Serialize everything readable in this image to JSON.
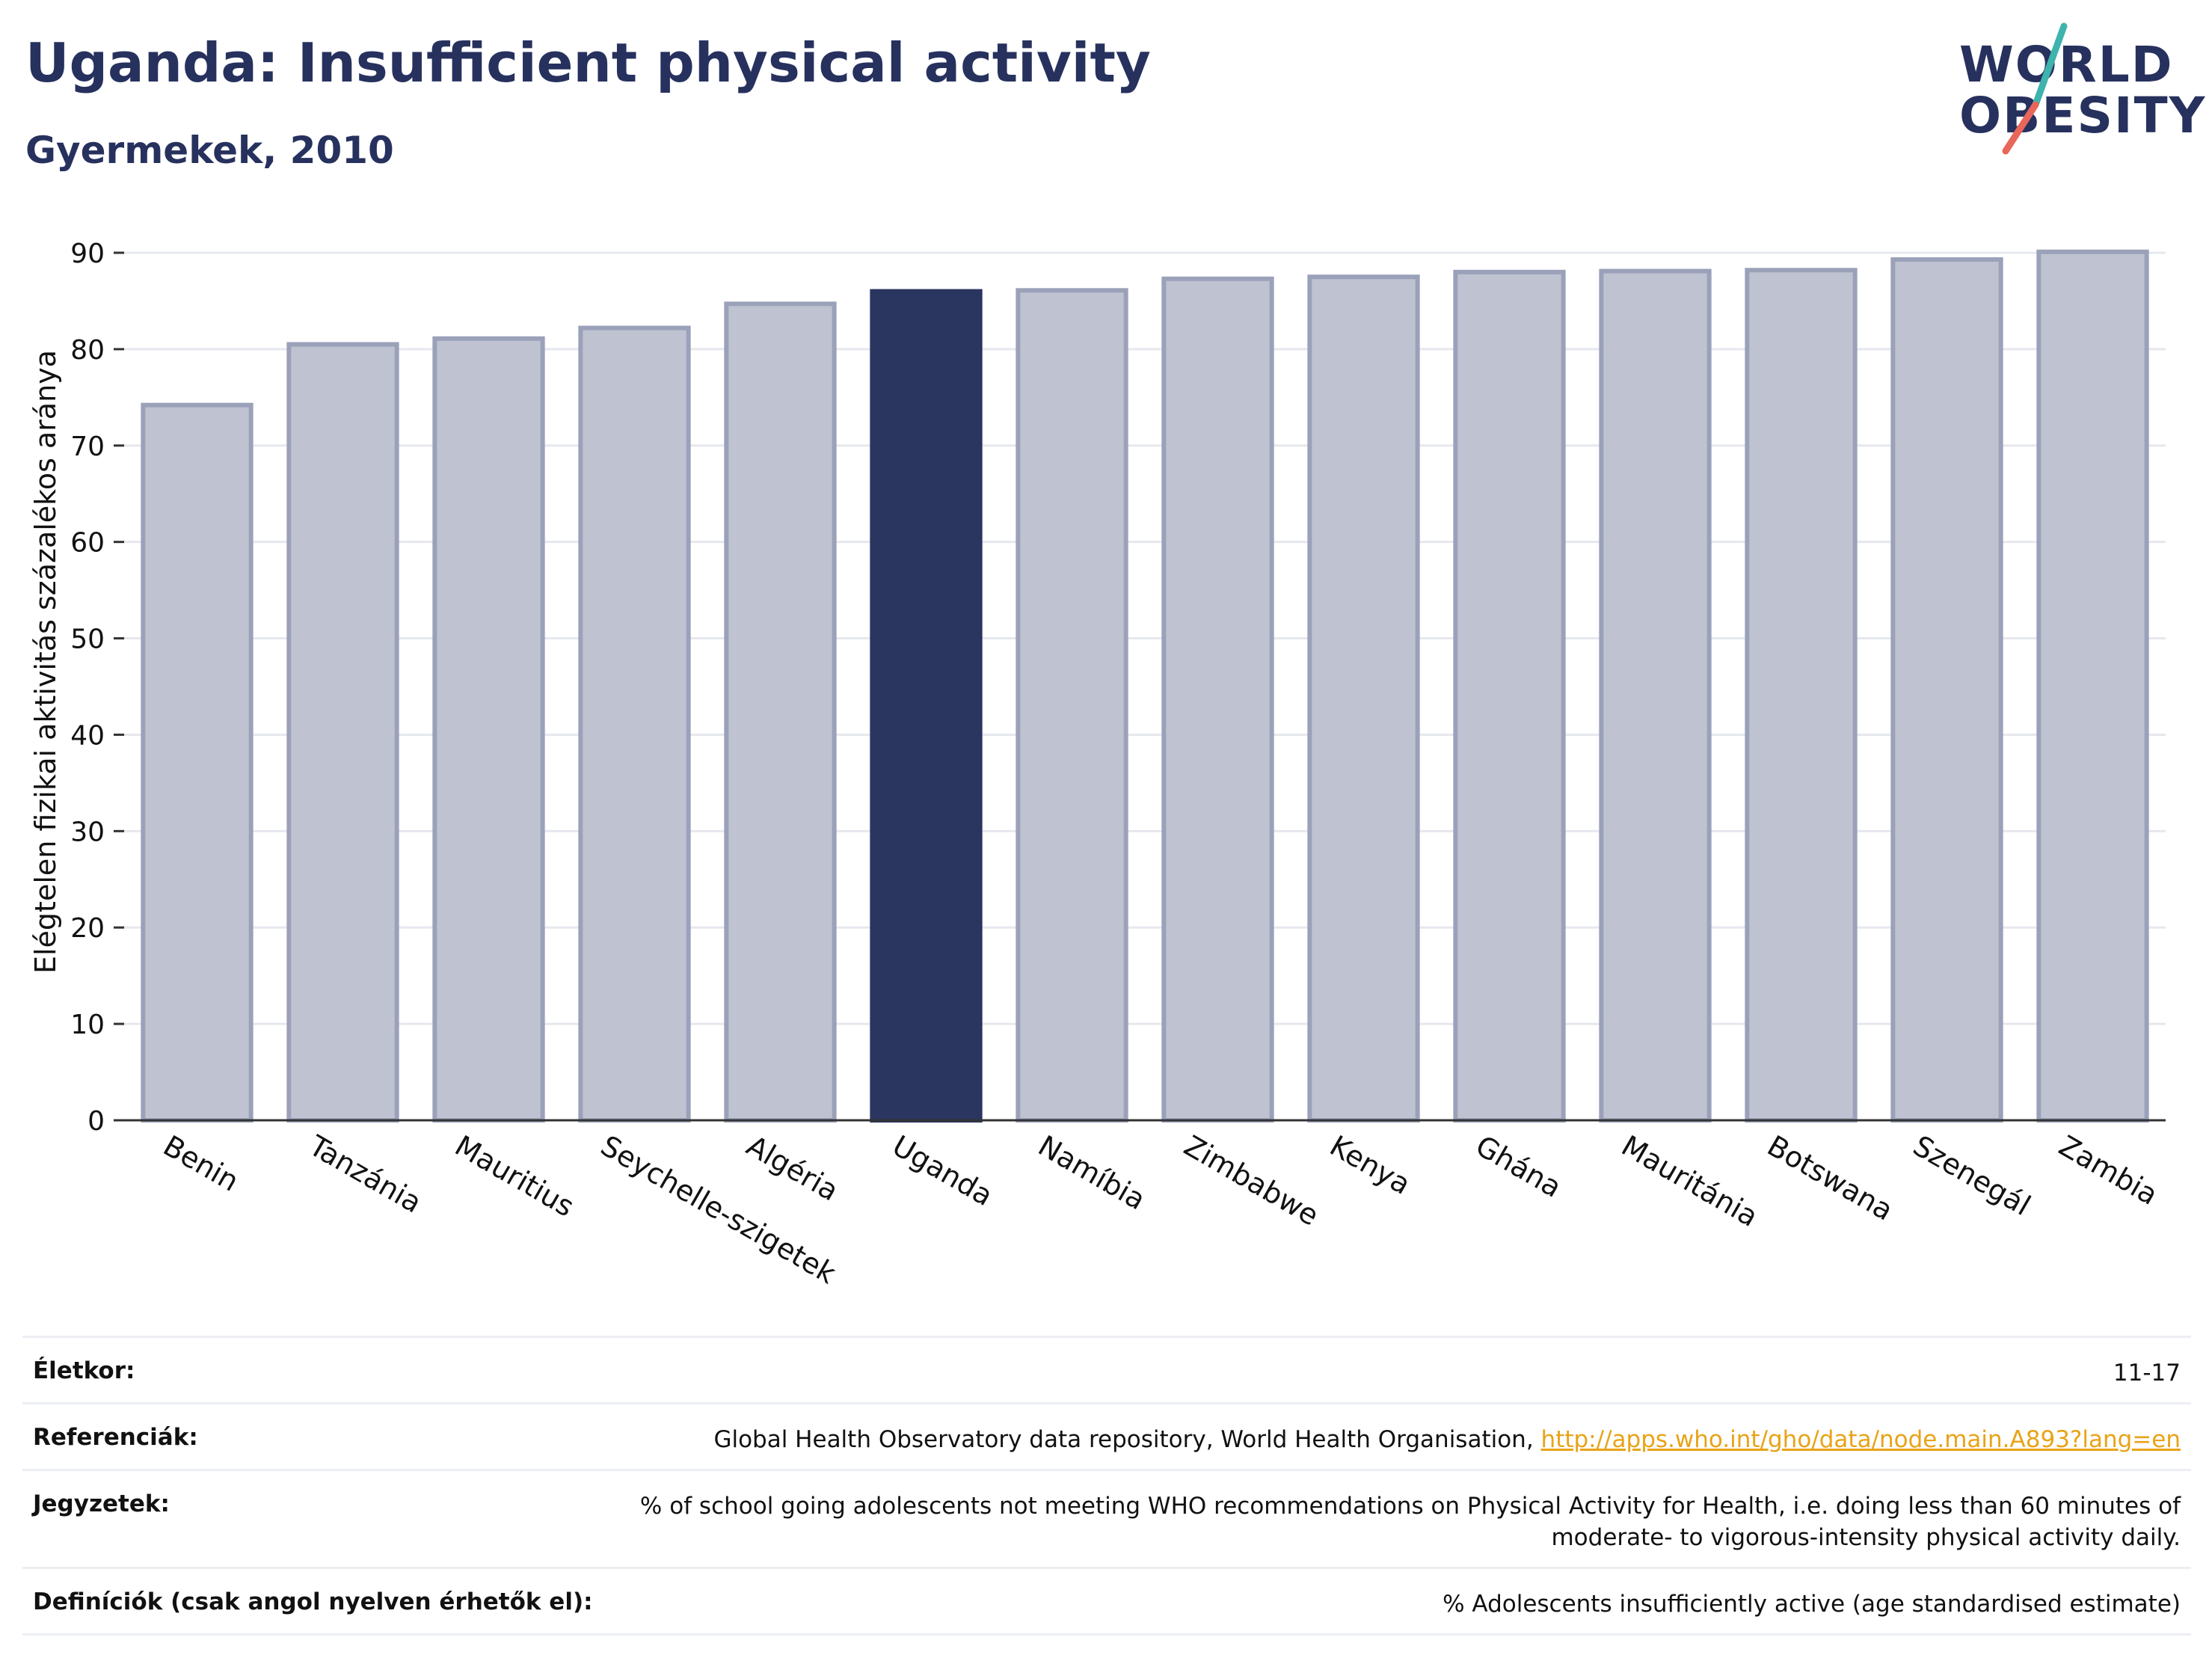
{
  "header": {
    "title": "Uganda: Insufficient physical activity",
    "subtitle": "Gyermekek, 2010"
  },
  "logo": {
    "line1": "WORLD",
    "line2": "OBESITY",
    "slash_colors": [
      "#3fb3ad",
      "#e8665a"
    ]
  },
  "colors": {
    "bar": "#bfc3d1",
    "bar_stroke": "#9aa1b9",
    "highlight": "#2a3560",
    "grid": "#e6e8ef",
    "axis": "#333333"
  },
  "chart_data": {
    "type": "bar",
    "title": "Uganda: Insufficient physical activity",
    "subtitle": "Gyermekek, 2010",
    "ylabel": "Elégtelen fizikai aktivitás százalékos aránya",
    "xlabel": "",
    "ylim": [
      0,
      90
    ],
    "yticks": [
      0,
      10,
      20,
      30,
      40,
      50,
      60,
      70,
      80,
      90
    ],
    "grid": true,
    "highlight": "Uganda",
    "categories": [
      "Benin",
      "Tanzánia",
      "Mauritius",
      "Seychelle-szigetek",
      "Algéria",
      "Uganda",
      "Namíbia",
      "Zimbabwe",
      "Kenya",
      "Ghána",
      "Mauritánia",
      "Botswana",
      "Szenegál",
      "Zambia"
    ],
    "values": [
      74.2,
      80.5,
      81.1,
      82.2,
      84.7,
      86.0,
      86.1,
      87.3,
      87.5,
      88.0,
      88.1,
      88.2,
      89.3,
      90.1
    ]
  },
  "footer": {
    "rows": [
      {
        "label": "Életkor:",
        "value": "11-17"
      },
      {
        "label": "Referenciák:",
        "value": "Global Health Observatory data repository, World Health Organisation, ",
        "link": "http://apps.who.int/gho/data/node.main.A893?lang=en"
      },
      {
        "label": "Jegyzetek:",
        "value": "% of school going adolescents not meeting WHO recommendations on Physical Activity for Health, i.e. doing less than 60 minutes of moderate- to vigorous-intensity physical activity daily."
      },
      {
        "label": "Definíciók (csak angol nyelven érhetők el):",
        "value": "% Adolescents insufficiently active (age standardised estimate)"
      }
    ]
  }
}
